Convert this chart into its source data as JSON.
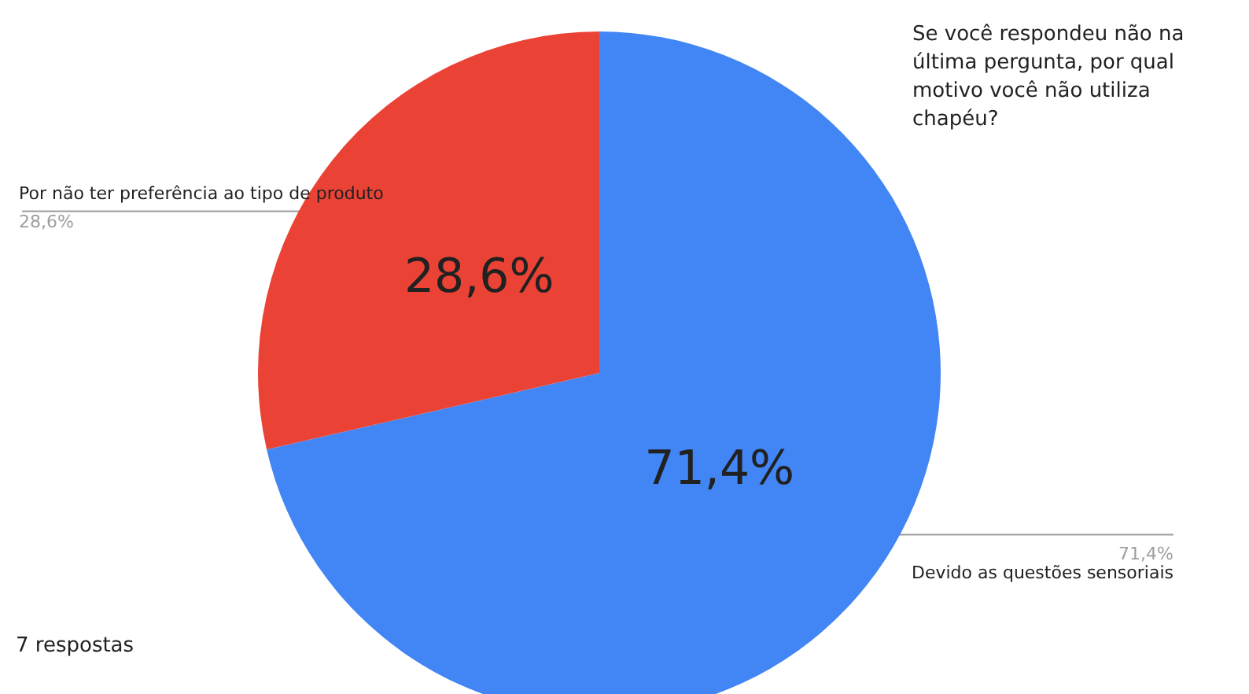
{
  "chart_data": {
    "type": "pie",
    "title": "Se você respondeu não na última pergunta, por qual motivo você não utiliza chapéu?",
    "categories": [
      "Devido as questões sensoriais",
      "Por não ter preferência ao tipo de produto"
    ],
    "values": [
      71.4,
      28.6
    ],
    "colors": [
      "#4285f4",
      "#ea4335"
    ],
    "value_labels": [
      "71,4%",
      "28,6%"
    ],
    "annotations": [
      "7 respostas"
    ],
    "legend": false
  }
}
